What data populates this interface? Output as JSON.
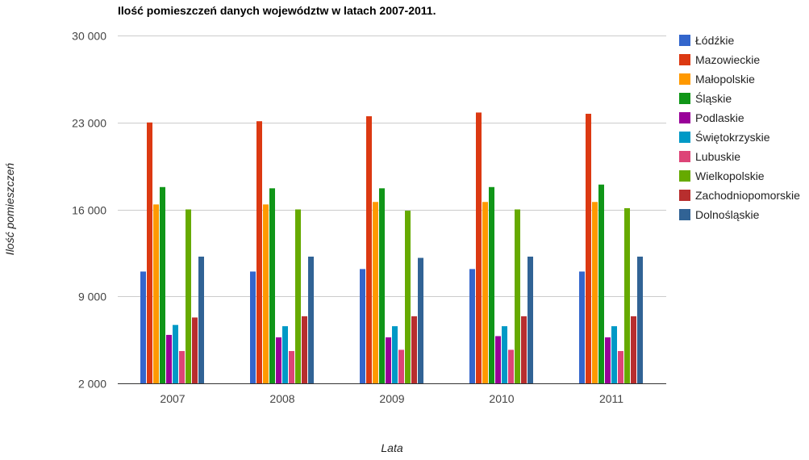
{
  "chart_data": {
    "type": "bar",
    "title": "Ilość pomieszczeń danych województw w latach 2007-2011.",
    "xlabel": "Lata",
    "ylabel": "Ilość pomieszczeń",
    "categories": [
      "2007",
      "2008",
      "2009",
      "2010",
      "2011"
    ],
    "ylim": [
      2000,
      30000
    ],
    "yticks": [
      2000,
      9000,
      16000,
      23000,
      30000
    ],
    "ytick_labels": [
      "2 000",
      "9 000",
      "16 000",
      "23 000",
      "30 000"
    ],
    "grid": true,
    "legend_position": "right",
    "series": [
      {
        "name": "Łódźkie",
        "color": "#3366cc",
        "values": [
          11000,
          11000,
          11200,
          11200,
          11000
        ]
      },
      {
        "name": "Mazowieckie",
        "color": "#dc3912",
        "values": [
          23000,
          23100,
          23500,
          23800,
          23700
        ]
      },
      {
        "name": "Małopolskie",
        "color": "#ff9900",
        "values": [
          16400,
          16400,
          16600,
          16600,
          16600
        ]
      },
      {
        "name": "Śląskie",
        "color": "#109618",
        "values": [
          17800,
          17700,
          17700,
          17800,
          18000
        ]
      },
      {
        "name": "Podlaskie",
        "color": "#990099",
        "values": [
          5900,
          5700,
          5700,
          5800,
          5700
        ]
      },
      {
        "name": "Świętokrzyskie",
        "color": "#0099c6",
        "values": [
          6700,
          6600,
          6600,
          6600,
          6600
        ]
      },
      {
        "name": "Lubuskie",
        "color": "#dd4477",
        "values": [
          4600,
          4600,
          4700,
          4700,
          4600
        ]
      },
      {
        "name": "Wielkopolskie",
        "color": "#66aa00",
        "values": [
          16000,
          16000,
          15900,
          16000,
          16100
        ]
      },
      {
        "name": "Zachodniopomorskie",
        "color": "#b82e2e",
        "values": [
          7300,
          7400,
          7400,
          7400,
          7400
        ]
      },
      {
        "name": "Dolnośląskie",
        "color": "#316395",
        "values": [
          12200,
          12200,
          12100,
          12200,
          12200
        ]
      }
    ]
  }
}
